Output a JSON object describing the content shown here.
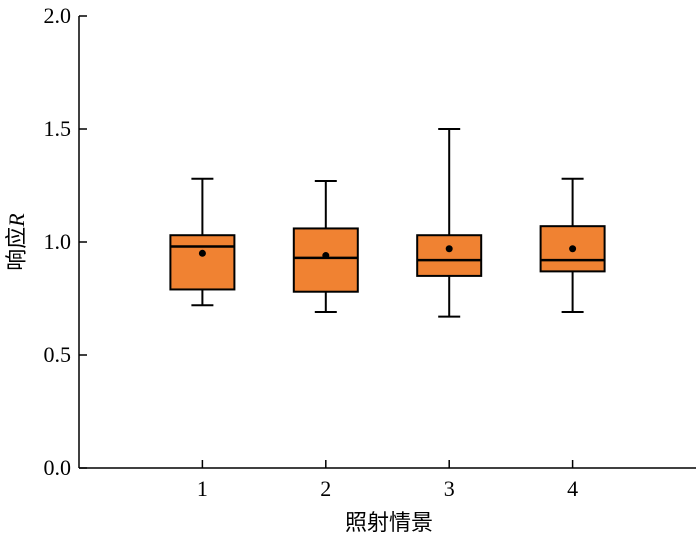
{
  "chart_data": {
    "type": "box",
    "title": "",
    "xlabel": "照射情景",
    "ylabel": "响应",
    "ylabel_symbol": "R",
    "ylim": [
      0.0,
      2.0
    ],
    "yticks": [
      "0.0",
      "0.5",
      "1.0",
      "1.5",
      "2.0"
    ],
    "ytick_values": [
      0.0,
      0.5,
      1.0,
      1.5,
      2.0
    ],
    "categories": [
      "1",
      "2",
      "3",
      "4"
    ],
    "boxes": [
      {
        "category": "1",
        "whisker_low": 0.72,
        "q1": 0.79,
        "median": 0.98,
        "q3": 1.03,
        "whisker_high": 1.28,
        "mean": 0.95
      },
      {
        "category": "2",
        "whisker_low": 0.69,
        "q1": 0.78,
        "median": 0.93,
        "q3": 1.06,
        "whisker_high": 1.27,
        "mean": 0.94
      },
      {
        "category": "3",
        "whisker_low": 0.67,
        "q1": 0.85,
        "median": 0.92,
        "q3": 1.03,
        "whisker_high": 1.5,
        "mean": 0.97
      },
      {
        "category": "4",
        "whisker_low": 0.69,
        "q1": 0.87,
        "median": 0.92,
        "q3": 1.07,
        "whisker_high": 1.28,
        "mean": 0.97
      }
    ],
    "box_color": "#F08232",
    "edge_color": "#000000",
    "grid": false,
    "legend": "none"
  }
}
